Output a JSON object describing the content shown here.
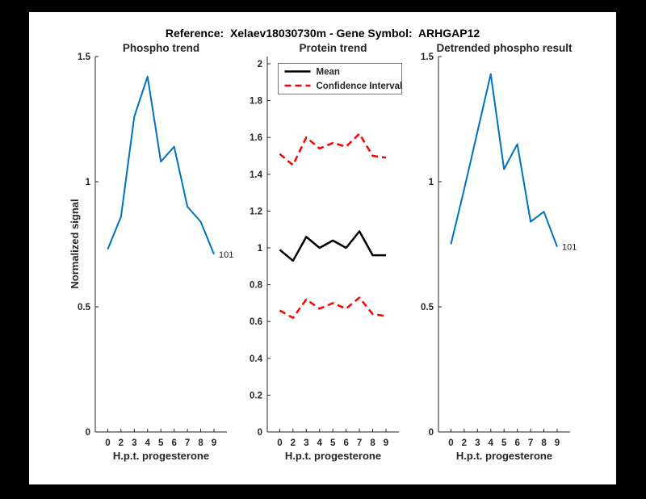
{
  "figure": {
    "title": "Reference:  Xelaev18030730m - Gene Symbol:  ARHGAP12",
    "background_color": "#000000",
    "canvas_color": "#ffffff"
  },
  "colors": {
    "matlab_blue": "#0072BD",
    "ci_red": "#ff0000",
    "mean_black": "#000000",
    "axis_gray": "#262626"
  },
  "chart_data": [
    {
      "type": "line",
      "title": "Phospho trend",
      "xlabel": "H.p.t. progesterone",
      "ylabel": "Normalized signal",
      "categories": [
        "0",
        "2",
        "3",
        "4",
        "5",
        "6",
        "7",
        "8",
        "9"
      ],
      "ylim": [
        0,
        1.5
      ],
      "yticks": [
        0,
        0.5,
        1,
        1.5
      ],
      "ytick_labels": [
        "0",
        "0.5",
        "1",
        "1.5"
      ],
      "grid": "off",
      "legend": null,
      "series": [
        {
          "name": "101",
          "color": "#0072BD",
          "dash": false,
          "values": [
            0.73,
            0.86,
            1.26,
            1.42,
            1.08,
            1.14,
            0.9,
            0.84,
            0.71
          ]
        }
      ],
      "end_label": "101"
    },
    {
      "type": "line",
      "title": "Protein trend",
      "xlabel": "H.p.t. progesterone",
      "ylabel": "",
      "categories": [
        "0",
        "2",
        "3",
        "4",
        "5",
        "6",
        "7",
        "8",
        "9"
      ],
      "ylim": [
        0,
        2
      ],
      "yticks": [
        0,
        0.2,
        0.4,
        0.6,
        0.8,
        1,
        1.2,
        1.4,
        1.6,
        1.8,
        2
      ],
      "ytick_labels": [
        "0",
        "0.2",
        "0.4",
        "0.6",
        "0.8",
        "1",
        "1.2",
        "1.4",
        "1.6",
        "1.8",
        "2"
      ],
      "grid": "off",
      "legend": {
        "position": "northwest",
        "entries": [
          {
            "label": "Mean",
            "color": "#000000",
            "dash": false
          },
          {
            "label": "Confidence Interval",
            "color": "#ff0000",
            "dash": true
          }
        ]
      },
      "series": [
        {
          "name": "Confidence Interval upper",
          "color": "#ff0000",
          "dash": true,
          "values": [
            1.51,
            1.45,
            1.6,
            1.54,
            1.57,
            1.55,
            1.62,
            1.5,
            1.49
          ]
        },
        {
          "name": "Mean",
          "color": "#000000",
          "dash": false,
          "values": [
            0.99,
            0.93,
            1.06,
            1.0,
            1.04,
            1.0,
            1.09,
            0.96,
            0.96
          ]
        },
        {
          "name": "Confidence Interval lower",
          "color": "#ff0000",
          "dash": true,
          "values": [
            0.66,
            0.62,
            0.72,
            0.67,
            0.7,
            0.67,
            0.73,
            0.64,
            0.63
          ]
        }
      ],
      "end_label": null
    },
    {
      "type": "line",
      "title": "Detrended phospho result",
      "xlabel": "H.p.t. progesterone",
      "ylabel": "",
      "categories": [
        "0",
        "2",
        "3",
        "4",
        "5",
        "6",
        "7",
        "8",
        "9"
      ],
      "ylim": [
        0,
        1.5
      ],
      "yticks": [
        0,
        0.5,
        1,
        1.5
      ],
      "ytick_labels": [
        "0",
        "0.5",
        "1",
        "1.5"
      ],
      "grid": "off",
      "legend": null,
      "series": [
        {
          "name": "101",
          "color": "#0072BD",
          "dash": false,
          "values": [
            0.75,
            0.97,
            1.2,
            1.43,
            1.05,
            1.15,
            0.84,
            0.88,
            0.74
          ]
        }
      ],
      "end_label": "101"
    }
  ]
}
